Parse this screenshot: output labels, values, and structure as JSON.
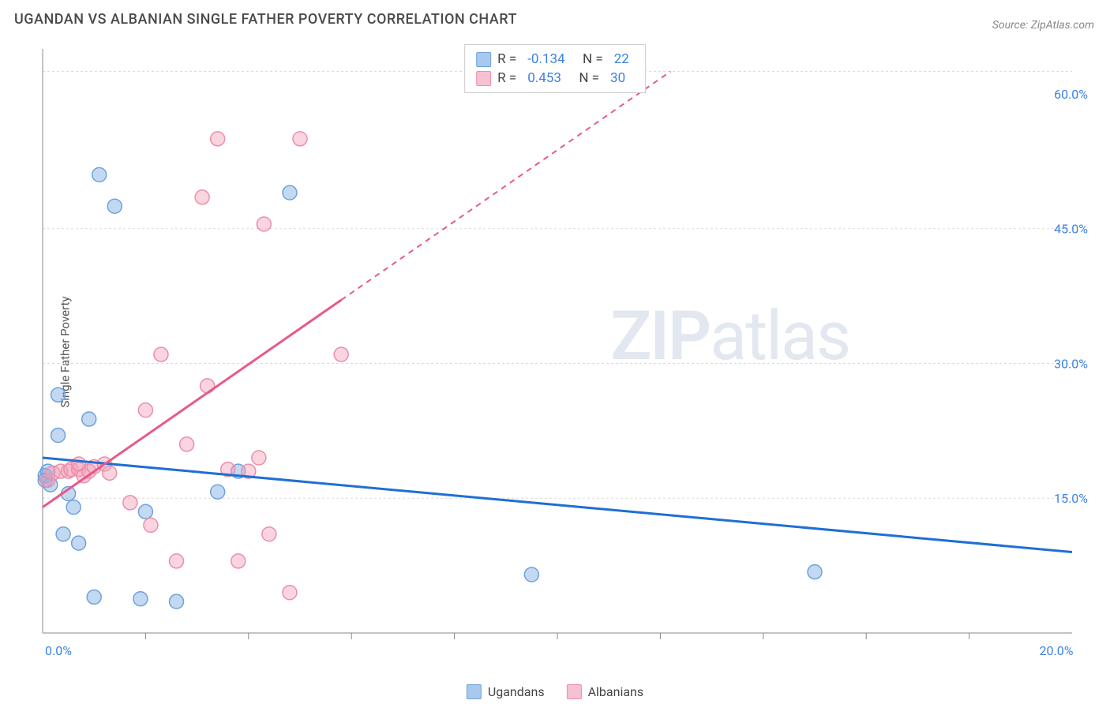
{
  "title": "UGANDAN VS ALBANIAN SINGLE FATHER POVERTY CORRELATION CHART",
  "source": "Source: ZipAtlas.com",
  "ylabel": "Single Father Poverty",
  "watermark": {
    "part1": "ZIP",
    "part2": "atlas"
  },
  "chart": {
    "type": "scatter",
    "xlim": [
      0,
      20
    ],
    "ylim": [
      0,
      65
    ],
    "y_gridlines": [
      15,
      30,
      45,
      62.5
    ],
    "y_ticks": [
      {
        "v": 15,
        "label": "15.0%"
      },
      {
        "v": 30,
        "label": "30.0%"
      },
      {
        "v": 45,
        "label": "45.0%"
      },
      {
        "v": 60,
        "label": "60.0%"
      }
    ],
    "x_ticks_minor": [
      2,
      4,
      6,
      8,
      10,
      12,
      14,
      16,
      18
    ],
    "x_ticks": [
      {
        "v": 0,
        "label": "0.0%"
      },
      {
        "v": 20,
        "label": "20.0%"
      }
    ],
    "background_color": "#ffffff",
    "grid_color": "#dcdcdc",
    "axis_color": "#888888",
    "tick_label_color": "#3b82e6",
    "marker_radius": 9,
    "marker_stroke_width": 1.5,
    "trend_line_width": 3,
    "series": [
      {
        "id": "ugandans",
        "label": "Ugandans",
        "fill": "rgba(123,171,227,0.45)",
        "stroke": "#6fa1dd",
        "swatch_fill": "#a9c8ed",
        "swatch_border": "#6fa1dd",
        "R": "-0.134",
        "N": "22",
        "trend": {
          "x1": 0,
          "y1": 19.5,
          "x2": 20,
          "y2": 9.0,
          "color": "#1f6fd4",
          "dashed": false
        },
        "points": [
          [
            0.05,
            17.0
          ],
          [
            0.05,
            17.5
          ],
          [
            0.1,
            18.0
          ],
          [
            0.15,
            16.5
          ],
          [
            0.3,
            22.0
          ],
          [
            0.3,
            26.5
          ],
          [
            0.4,
            11.0
          ],
          [
            0.5,
            15.5
          ],
          [
            0.6,
            14.0
          ],
          [
            0.7,
            10.0
          ],
          [
            0.9,
            23.8
          ],
          [
            1.0,
            4.0
          ],
          [
            1.1,
            51.0
          ],
          [
            1.4,
            47.5
          ],
          [
            1.9,
            3.8
          ],
          [
            2.0,
            13.5
          ],
          [
            2.6,
            3.5
          ],
          [
            3.4,
            15.7
          ],
          [
            4.8,
            49.0
          ],
          [
            3.8,
            18.0
          ],
          [
            9.5,
            6.5
          ],
          [
            15.0,
            6.8
          ]
        ]
      },
      {
        "id": "albanians",
        "label": "Albanians",
        "fill": "rgba(244,160,185,0.45)",
        "stroke": "#ec8eab",
        "swatch_fill": "#f6c1d1",
        "swatch_border": "#ec8eab",
        "R": "0.453",
        "N": "30",
        "trend": {
          "x1": 0,
          "y1": 14.0,
          "x2": 12.2,
          "y2": 62.5,
          "color": "#e85a87",
          "solid_until_x": 5.8,
          "dashed": true
        },
        "points": [
          [
            0.1,
            17.0
          ],
          [
            0.2,
            17.8
          ],
          [
            0.35,
            18.0
          ],
          [
            0.5,
            18.0
          ],
          [
            0.55,
            18.2
          ],
          [
            0.7,
            18.2
          ],
          [
            0.7,
            18.8
          ],
          [
            0.8,
            17.5
          ],
          [
            0.9,
            18.0
          ],
          [
            1.0,
            18.5
          ],
          [
            1.2,
            18.8
          ],
          [
            1.3,
            17.8
          ],
          [
            1.7,
            14.5
          ],
          [
            2.0,
            24.8
          ],
          [
            2.1,
            12.0
          ],
          [
            2.3,
            31.0
          ],
          [
            2.6,
            8.0
          ],
          [
            2.8,
            21.0
          ],
          [
            3.2,
            27.5
          ],
          [
            3.1,
            48.5
          ],
          [
            3.4,
            55.0
          ],
          [
            3.6,
            18.2
          ],
          [
            3.8,
            8.0
          ],
          [
            4.0,
            18.0
          ],
          [
            4.2,
            19.5
          ],
          [
            4.3,
            45.5
          ],
          [
            4.4,
            11.0
          ],
          [
            4.8,
            4.5
          ],
          [
            5.0,
            55.0
          ],
          [
            5.8,
            31.0
          ]
        ]
      }
    ]
  }
}
